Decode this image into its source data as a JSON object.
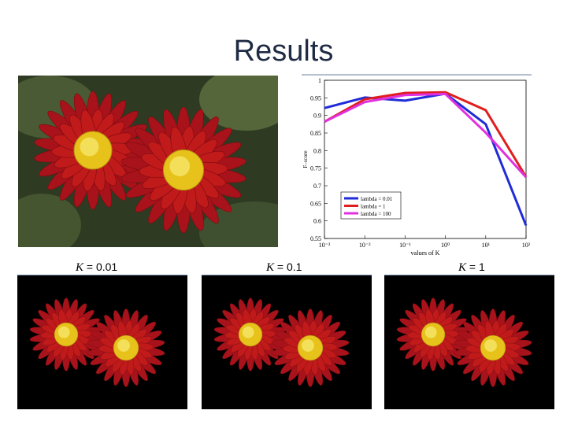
{
  "slide": {
    "title": "Results"
  },
  "labels": [
    {
      "var": "K",
      "text": " = 0.01"
    },
    {
      "var": "K",
      "text": " = 0.1"
    },
    {
      "var": "K",
      "text": " = 1"
    }
  ],
  "colors": {
    "bg_photo": "#2f3a22",
    "petal": "#c01a1a",
    "center": "#e6c21a"
  },
  "chart_data": {
    "type": "line",
    "title": "",
    "xlabel": "values of K",
    "ylabel": "F–score",
    "xscale": "log",
    "xlim": [
      0.001,
      100
    ],
    "ylim": [
      0.55,
      1
    ],
    "x": [
      0.001,
      0.01,
      0.1,
      1,
      10,
      100
    ],
    "xtick_labels": [
      "10⁻³",
      "10⁻²",
      "10⁻¹",
      "10⁰",
      "10¹",
      "10²"
    ],
    "yticks": [
      "0.55",
      "0.6",
      "0.65",
      "0.7",
      "0.75",
      "0.8",
      "0.85",
      "0.9",
      "0.95",
      "1"
    ],
    "grid": false,
    "legend": "bottom-right",
    "series": [
      {
        "name": "lambda = 0.01",
        "color": "#1f2cd8",
        "values": [
          0.921,
          0.951,
          0.942,
          0.962,
          0.875,
          0.587
        ]
      },
      {
        "name": "lambda = 1",
        "color": "#e01e1e",
        "values": [
          0.882,
          0.946,
          0.964,
          0.966,
          0.915,
          0.725
        ]
      },
      {
        "name": "lambda = 100",
        "color": "#e030e0",
        "values": [
          0.882,
          0.938,
          0.958,
          0.961,
          0.851,
          0.724
        ]
      }
    ]
  }
}
